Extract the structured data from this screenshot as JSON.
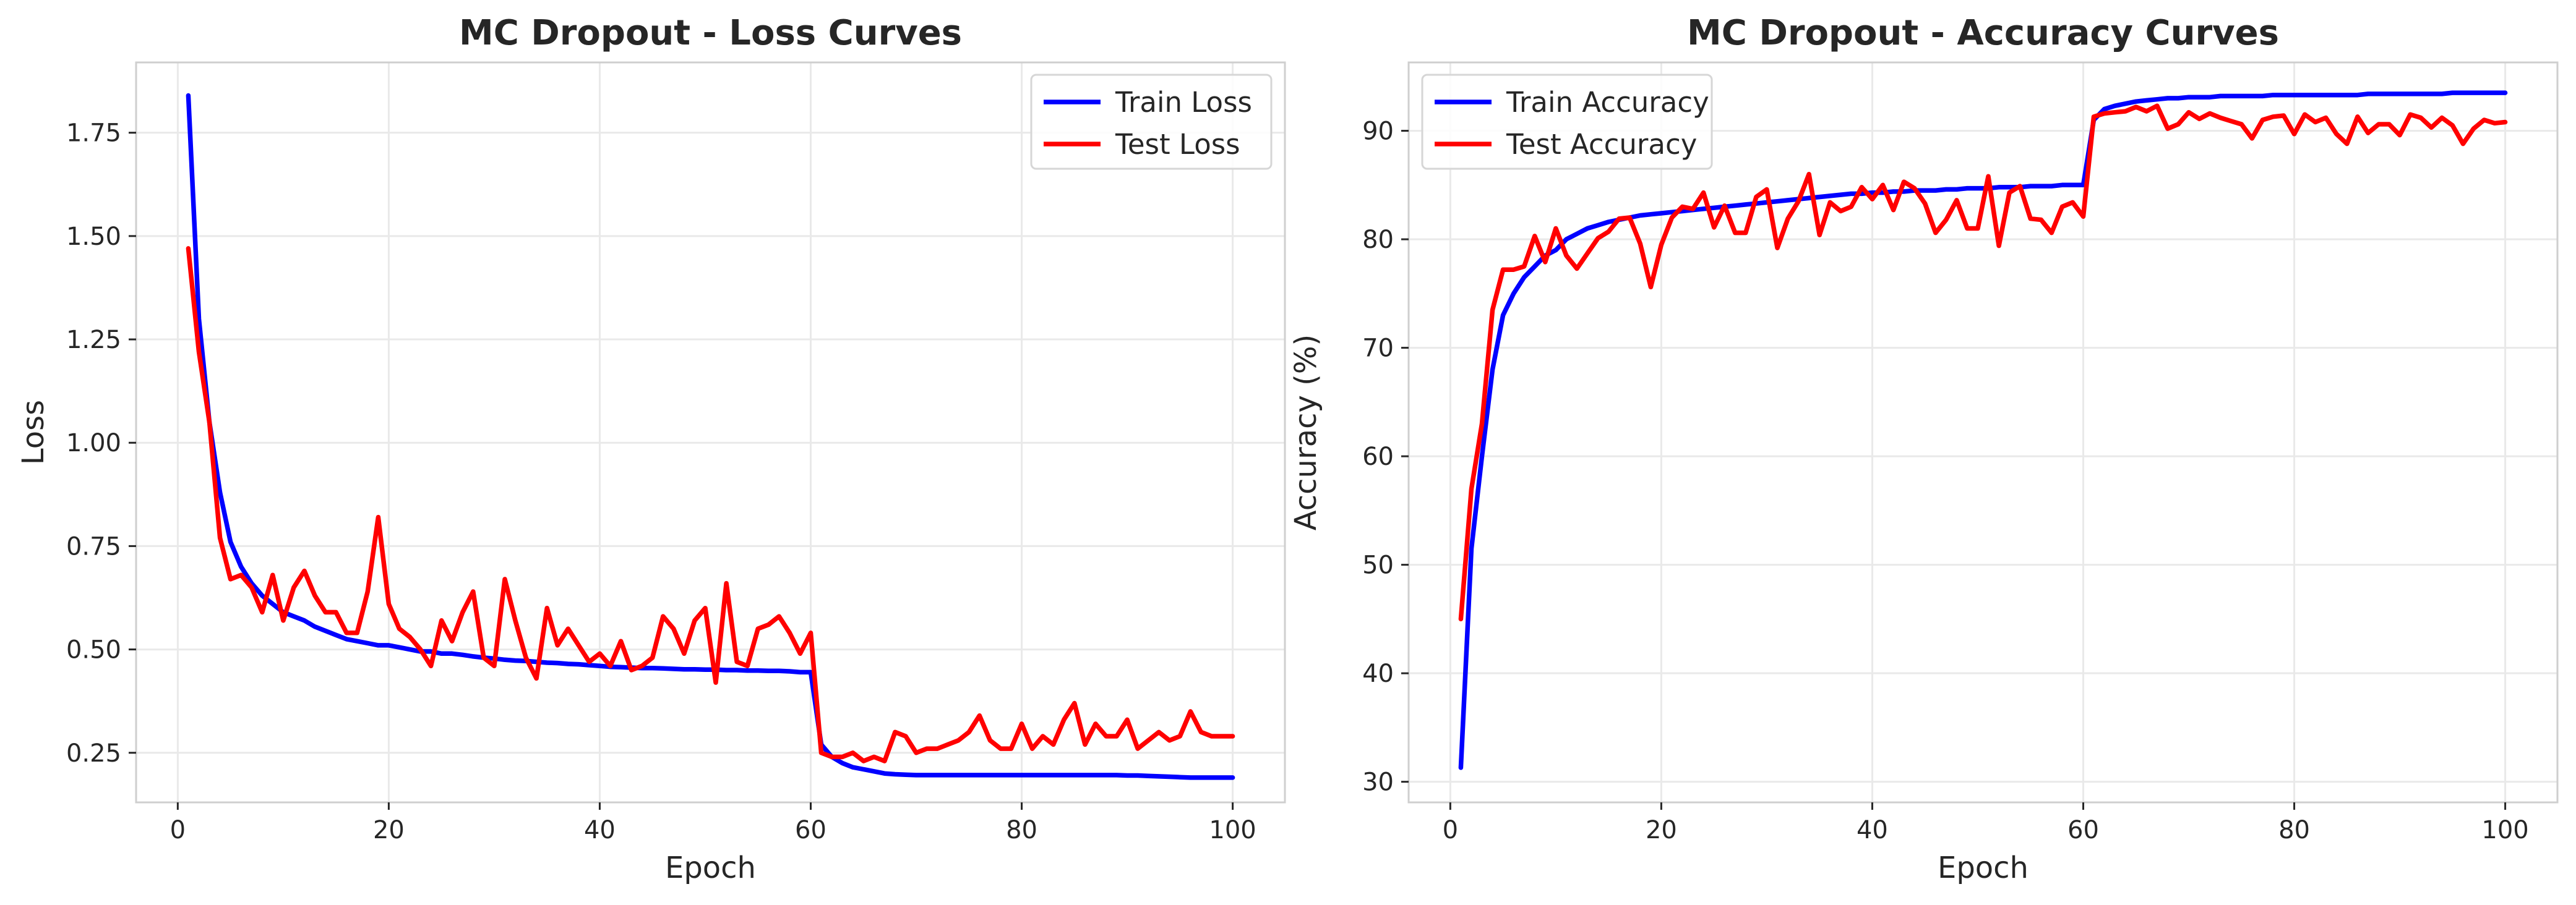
{
  "chart_data": [
    {
      "type": "line",
      "title": "MC Dropout - Loss Curves",
      "xlabel": "Epoch",
      "ylabel": "Loss",
      "xlim": [
        -3.95,
        104.95
      ],
      "ylim": [
        0.13,
        1.92
      ],
      "xticks": [
        0,
        20,
        40,
        60,
        80,
        100
      ],
      "yticks": [
        0.25,
        0.5,
        0.75,
        1.0,
        1.25,
        1.5,
        1.75
      ],
      "ytick_labels": [
        "0.25",
        "0.50",
        "0.75",
        "1.00",
        "1.25",
        "1.50",
        "1.75"
      ],
      "grid": true,
      "legend_position": "top-right",
      "series": [
        {
          "name": "Train Loss",
          "color": "#0000ff",
          "values": [
            1.84,
            1.3,
            1.05,
            0.88,
            0.76,
            0.7,
            0.66,
            0.63,
            0.61,
            0.59,
            0.58,
            0.57,
            0.555,
            0.545,
            0.535,
            0.525,
            0.52,
            0.515,
            0.51,
            0.51,
            0.505,
            0.5,
            0.495,
            0.495,
            0.49,
            0.49,
            0.487,
            0.483,
            0.48,
            0.478,
            0.475,
            0.473,
            0.472,
            0.47,
            0.468,
            0.467,
            0.465,
            0.464,
            0.462,
            0.46,
            0.458,
            0.457,
            0.456,
            0.455,
            0.455,
            0.454,
            0.453,
            0.452,
            0.452,
            0.451,
            0.451,
            0.45,
            0.45,
            0.449,
            0.449,
            0.448,
            0.448,
            0.447,
            0.445,
            0.445,
            0.27,
            0.24,
            0.225,
            0.215,
            0.21,
            0.205,
            0.2,
            0.198,
            0.197,
            0.196,
            0.196,
            0.196,
            0.196,
            0.196,
            0.196,
            0.196,
            0.196,
            0.196,
            0.196,
            0.196,
            0.196,
            0.196,
            0.196,
            0.196,
            0.196,
            0.196,
            0.196,
            0.196,
            0.196,
            0.195,
            0.195,
            0.194,
            0.193,
            0.192,
            0.191,
            0.19,
            0.19,
            0.19,
            0.19,
            0.19
          ]
        },
        {
          "name": "Test Loss",
          "color": "#ff0000",
          "values": [
            1.47,
            1.22,
            1.05,
            0.77,
            0.67,
            0.68,
            0.65,
            0.59,
            0.68,
            0.57,
            0.65,
            0.69,
            0.63,
            0.59,
            0.59,
            0.54,
            0.54,
            0.64,
            0.82,
            0.61,
            0.55,
            0.53,
            0.5,
            0.46,
            0.57,
            0.52,
            0.59,
            0.64,
            0.48,
            0.46,
            0.67,
            0.57,
            0.48,
            0.43,
            0.6,
            0.51,
            0.55,
            0.51,
            0.47,
            0.49,
            0.46,
            0.52,
            0.45,
            0.46,
            0.48,
            0.58,
            0.55,
            0.49,
            0.57,
            0.6,
            0.42,
            0.66,
            0.47,
            0.46,
            0.55,
            0.56,
            0.58,
            0.54,
            0.49,
            0.54,
            0.25,
            0.24,
            0.24,
            0.25,
            0.23,
            0.24,
            0.23,
            0.3,
            0.29,
            0.25,
            0.26,
            0.26,
            0.27,
            0.28,
            0.3,
            0.34,
            0.28,
            0.26,
            0.26,
            0.32,
            0.26,
            0.29,
            0.27,
            0.33,
            0.37,
            0.27,
            0.32,
            0.29,
            0.29,
            0.33,
            0.26,
            0.28,
            0.3,
            0.28,
            0.29,
            0.35,
            0.3,
            0.29,
            0.29,
            0.29
          ]
        }
      ]
    },
    {
      "type": "line",
      "title": "MC Dropout - Accuracy Curves",
      "xlabel": "Epoch",
      "ylabel": "Accuracy (%)",
      "xlim": [
        -3.95,
        104.95
      ],
      "ylim": [
        28.1,
        96.3
      ],
      "xticks": [
        0,
        20,
        40,
        60,
        80,
        100
      ],
      "yticks": [
        30,
        40,
        50,
        60,
        70,
        80,
        90
      ],
      "ytick_labels": [
        "30",
        "40",
        "50",
        "60",
        "70",
        "80",
        "90"
      ],
      "grid": true,
      "legend_position": "top-left",
      "series": [
        {
          "name": "Train Accuracy",
          "color": "#0000ff",
          "values": [
            31.3,
            51.5,
            60.0,
            68.0,
            73.0,
            75.0,
            76.5,
            77.5,
            78.5,
            79.0,
            80.0,
            80.5,
            81.0,
            81.3,
            81.6,
            81.8,
            82.0,
            82.2,
            82.3,
            82.4,
            82.5,
            82.6,
            82.7,
            82.8,
            82.9,
            83.0,
            83.1,
            83.2,
            83.3,
            83.4,
            83.5,
            83.6,
            83.7,
            83.8,
            83.9,
            84.0,
            84.1,
            84.2,
            84.2,
            84.3,
            84.3,
            84.4,
            84.4,
            84.5,
            84.5,
            84.5,
            84.6,
            84.6,
            84.7,
            84.7,
            84.7,
            84.8,
            84.8,
            84.8,
            84.9,
            84.9,
            84.9,
            85.0,
            85.0,
            85.0,
            91.0,
            92.0,
            92.3,
            92.5,
            92.7,
            92.8,
            92.9,
            93.0,
            93.0,
            93.1,
            93.1,
            93.1,
            93.2,
            93.2,
            93.2,
            93.2,
            93.2,
            93.3,
            93.3,
            93.3,
            93.3,
            93.3,
            93.3,
            93.3,
            93.3,
            93.3,
            93.4,
            93.4,
            93.4,
            93.4,
            93.4,
            93.4,
            93.4,
            93.4,
            93.5,
            93.5,
            93.5,
            93.5,
            93.5,
            93.5
          ]
        },
        {
          "name": "Test Accuracy",
          "color": "#ff0000",
          "values": [
            45.0,
            57.0,
            63.0,
            73.5,
            77.2,
            77.2,
            77.5,
            80.3,
            77.9,
            81.0,
            78.5,
            77.3,
            78.7,
            80.1,
            80.7,
            81.9,
            82.0,
            79.6,
            75.6,
            79.5,
            82.0,
            83.0,
            82.8,
            84.3,
            81.1,
            83.1,
            80.6,
            80.6,
            83.9,
            84.6,
            79.2,
            81.9,
            83.5,
            86.0,
            80.4,
            83.4,
            82.6,
            83.0,
            84.8,
            83.7,
            85.0,
            82.7,
            85.3,
            84.7,
            83.3,
            80.6,
            81.8,
            83.6,
            81.0,
            81.0,
            85.8,
            79.4,
            84.3,
            84.9,
            81.9,
            81.8,
            80.6,
            83.0,
            83.4,
            82.1,
            91.3,
            91.6,
            91.7,
            91.8,
            92.2,
            91.8,
            92.3,
            90.2,
            90.6,
            91.7,
            91.1,
            91.6,
            91.2,
            90.9,
            90.6,
            89.3,
            91.0,
            91.3,
            91.4,
            89.7,
            91.5,
            90.8,
            91.2,
            89.7,
            88.8,
            91.3,
            89.8,
            90.6,
            90.6,
            89.6,
            91.5,
            91.2,
            90.3,
            91.2,
            90.5,
            88.8,
            90.2,
            91.0,
            90.7,
            90.8
          ]
        }
      ]
    }
  ]
}
